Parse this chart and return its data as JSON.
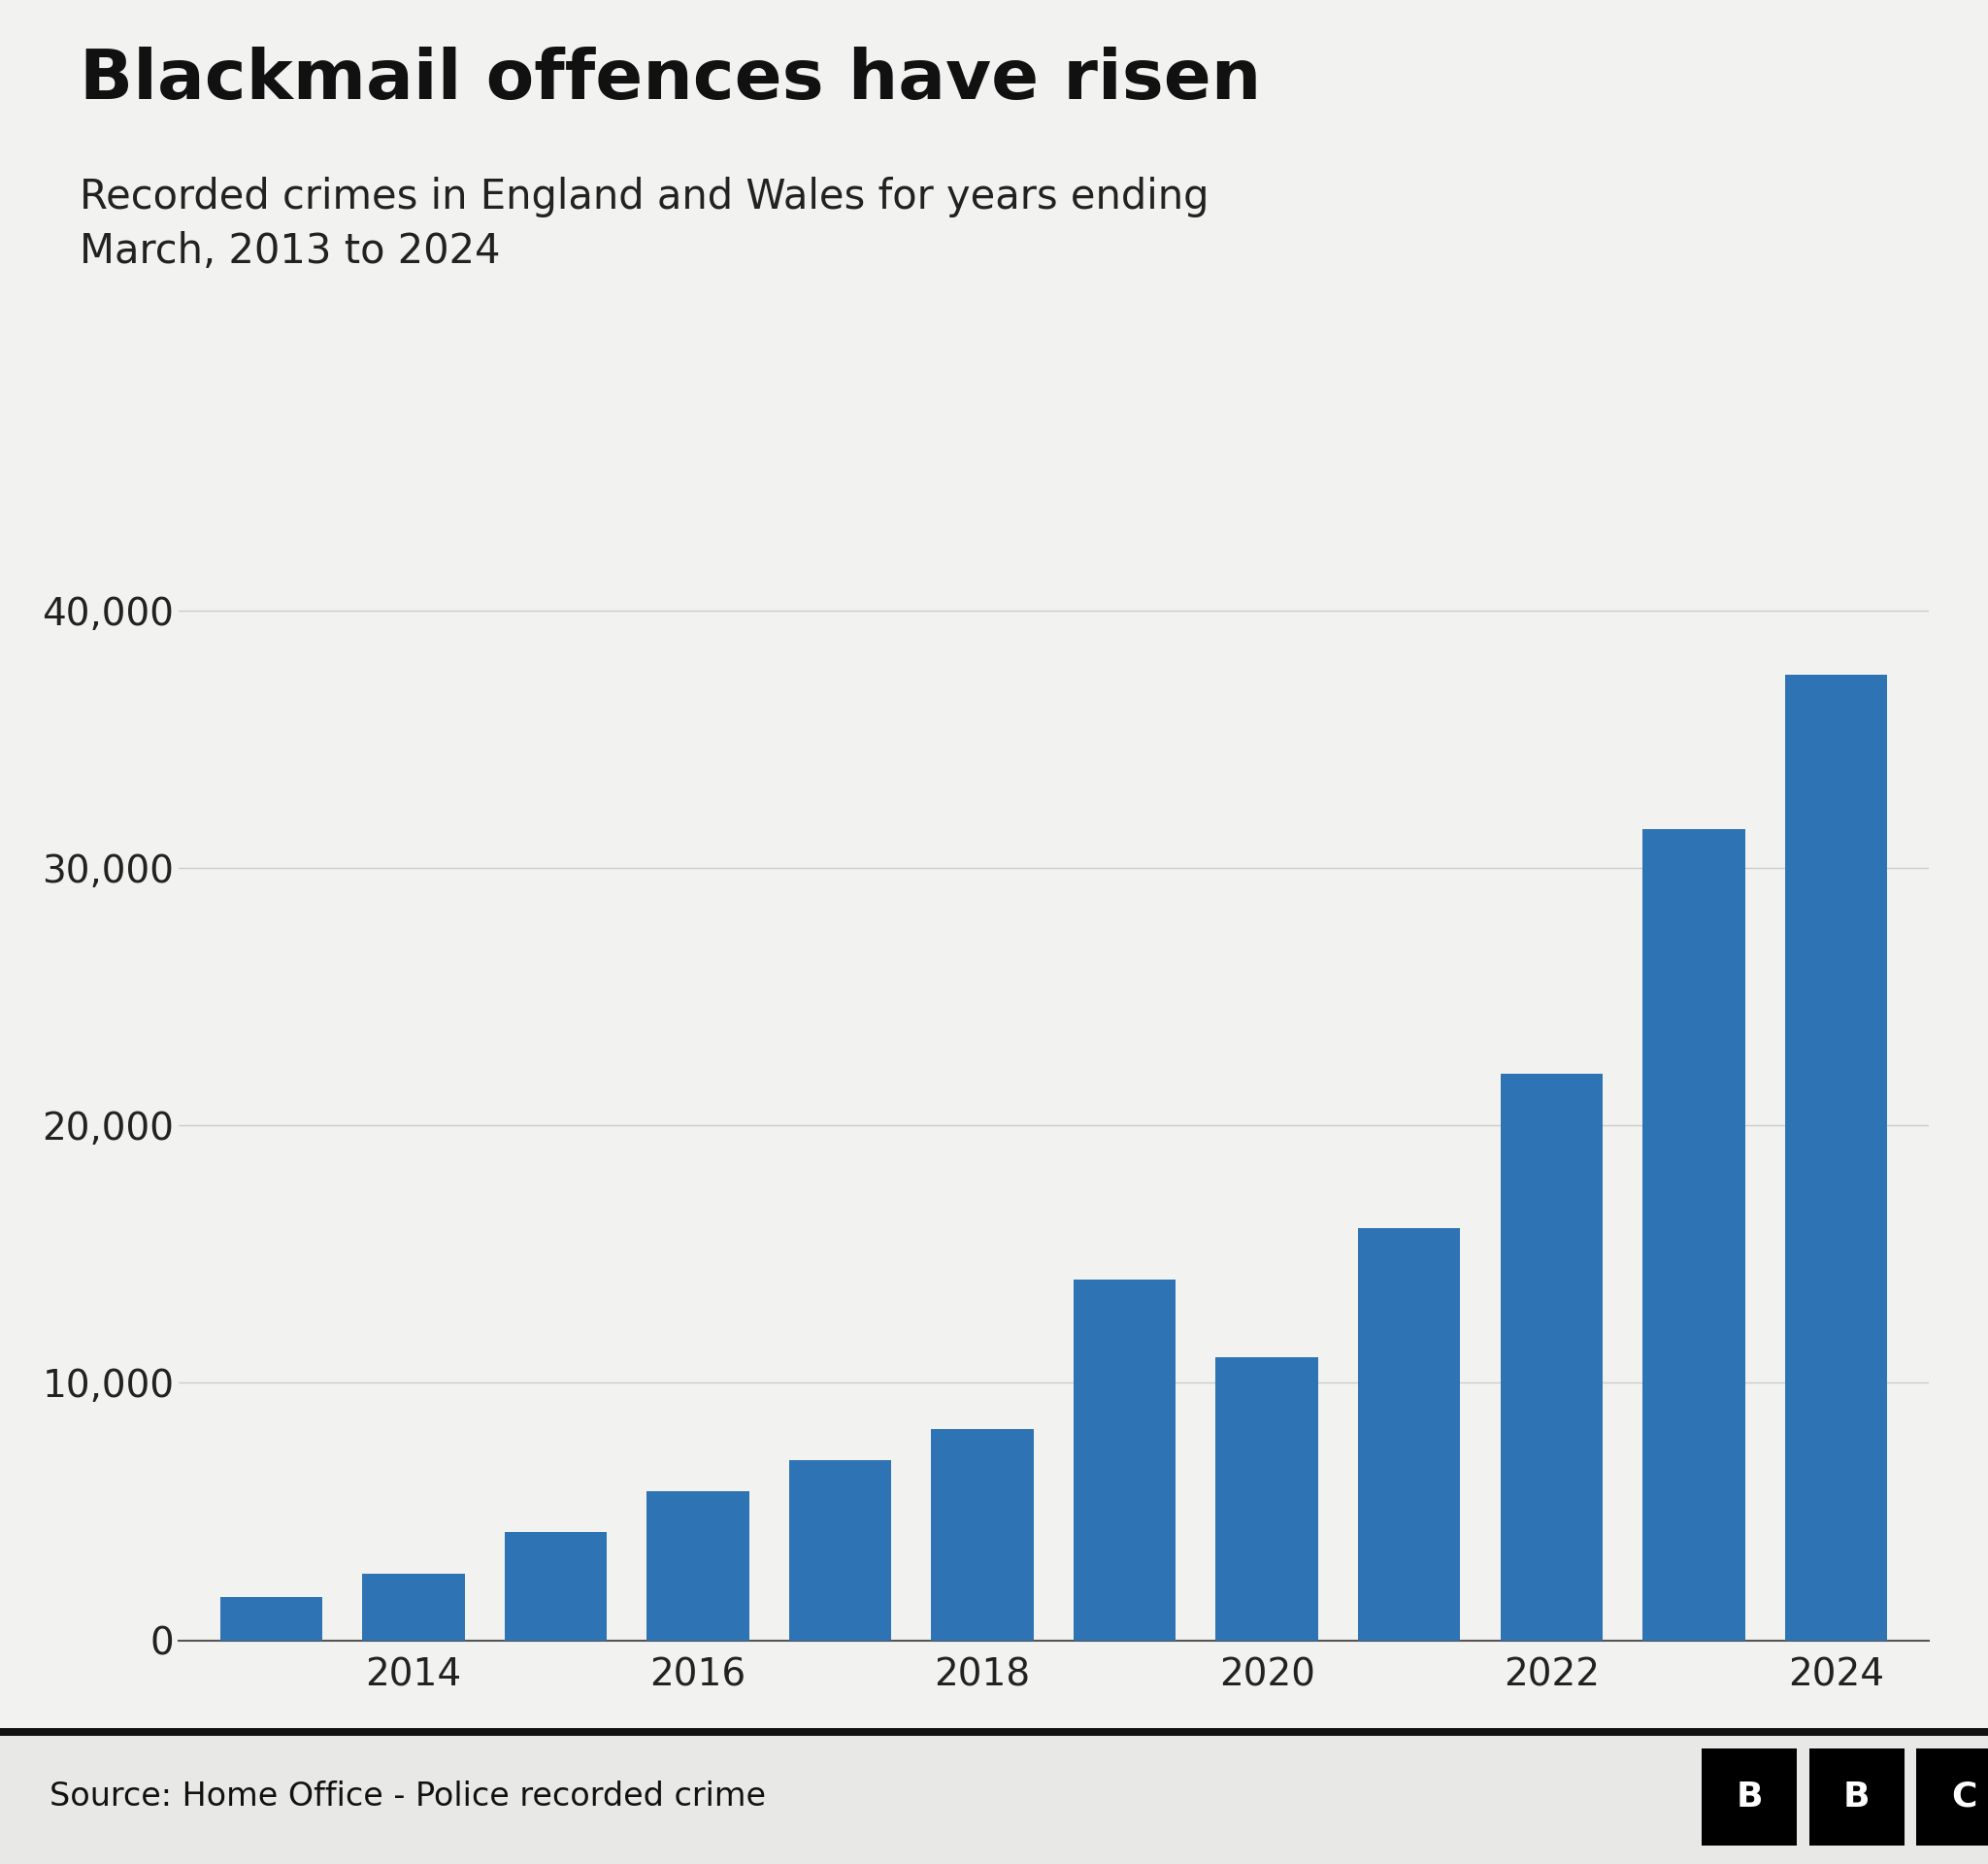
{
  "title": "Blackmail offences have risen",
  "subtitle": "Recorded crimes in England and Wales for years ending\nMarch, 2013 to 2024",
  "source": "Source: Home Office - Police recorded crime",
  "years": [
    2013,
    2014,
    2015,
    2016,
    2017,
    2018,
    2019,
    2020,
    2021,
    2022,
    2023,
    2024
  ],
  "values": [
    1700,
    2600,
    4200,
    5800,
    7000,
    8200,
    14000,
    11000,
    16000,
    22000,
    31500,
    37500
  ],
  "bar_color": "#2e74b5",
  "background_color": "#f2f2f0",
  "footer_bg_color": "#e8e8e6",
  "ylim": [
    0,
    42000
  ],
  "yticks": [
    0,
    10000,
    20000,
    30000,
    40000
  ],
  "xtick_labels": [
    "2014",
    "2016",
    "2018",
    "2020",
    "2022",
    "2024"
  ],
  "xtick_positions": [
    2014,
    2016,
    2018,
    2020,
    2022,
    2024
  ],
  "title_fontsize": 52,
  "subtitle_fontsize": 30,
  "tick_fontsize": 28,
  "source_fontsize": 24,
  "bbc_fontsize": 26
}
